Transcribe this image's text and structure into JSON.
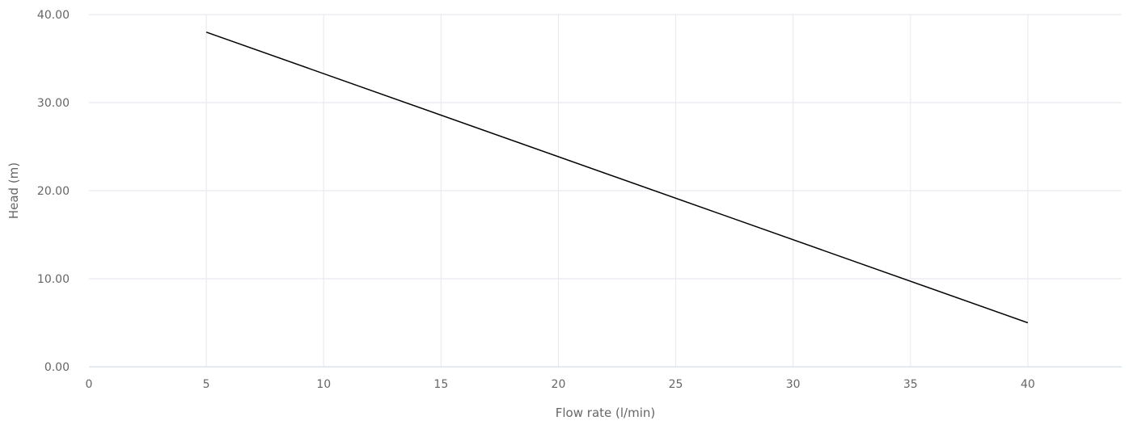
{
  "chart_data": {
    "type": "line",
    "xlabel": "Flow rate (l/min)",
    "ylabel": "Head (m)",
    "xlim": [
      0,
      44
    ],
    "ylim": [
      0,
      40
    ],
    "x_ticks": [
      "0",
      "5",
      "10",
      "15",
      "20",
      "25",
      "30",
      "35",
      "40"
    ],
    "y_ticks": [
      "0.00",
      "10.00",
      "20.00",
      "30.00",
      "40.00"
    ],
    "grid": true,
    "series": [
      {
        "color": "#000000",
        "points": [
          {
            "x": 5,
            "y": 38.0
          },
          {
            "x": 40,
            "y": 5.0
          }
        ]
      }
    ]
  },
  "colors": {
    "grid": "#e6e6ee",
    "axis": "#ccd6eb",
    "text": "#666666"
  }
}
